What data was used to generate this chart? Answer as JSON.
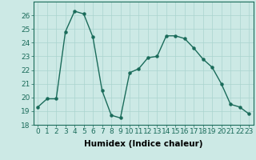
{
  "x": [
    0,
    1,
    2,
    3,
    4,
    5,
    6,
    7,
    8,
    9,
    10,
    11,
    12,
    13,
    14,
    15,
    16,
    17,
    18,
    19,
    20,
    21,
    22,
    23
  ],
  "y": [
    19.3,
    19.9,
    19.9,
    24.8,
    26.3,
    26.1,
    24.4,
    20.5,
    18.7,
    18.5,
    21.8,
    22.1,
    22.9,
    23.0,
    24.5,
    24.5,
    24.3,
    23.6,
    22.8,
    22.2,
    21.0,
    19.5,
    19.3,
    18.8
  ],
  "line_color": "#1a6b5a",
  "marker": "o",
  "marker_size": 2.2,
  "bg_color": "#cce9e5",
  "grid_color": "#aad4cf",
  "xlabel": "Humidex (Indice chaleur)",
  "ylim": [
    18,
    27
  ],
  "xlim": [
    -0.5,
    23.5
  ],
  "yticks": [
    18,
    19,
    20,
    21,
    22,
    23,
    24,
    25,
    26
  ],
  "xticks": [
    0,
    1,
    2,
    3,
    4,
    5,
    6,
    7,
    8,
    9,
    10,
    11,
    12,
    13,
    14,
    15,
    16,
    17,
    18,
    19,
    20,
    21,
    22,
    23
  ],
  "xlabel_fontsize": 7.5,
  "tick_fontsize": 6.5,
  "line_width": 1.0
}
